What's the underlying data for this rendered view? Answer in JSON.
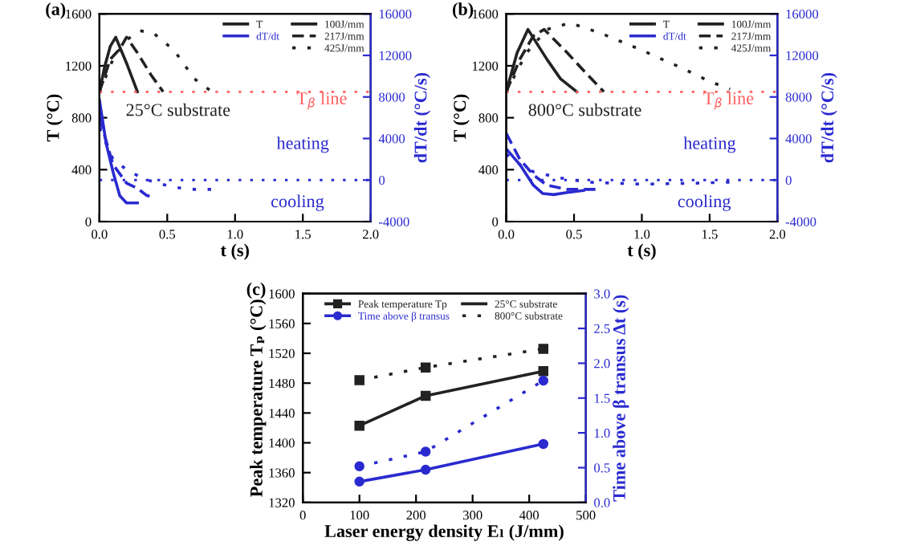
{
  "chart_data": [
    {
      "type": "line",
      "title": "(a)",
      "xlabel": "t (s)",
      "ylabel": "T (°C)",
      "y2label": "dT/dt (°C/s)",
      "xlim": [
        0,
        2
      ],
      "xticks": [
        {
          "value": 0,
          "label": "0.0"
        },
        {
          "value": 0.5,
          "label": "0.5"
        },
        {
          "value": 1,
          "label": "1.0"
        },
        {
          "value": 1.5,
          "label": "1.5"
        },
        {
          "value": 2,
          "label": "2.0"
        }
      ],
      "ylim": [
        0,
        1600
      ],
      "yticks": [
        0,
        400,
        800,
        1200,
        1600
      ],
      "y2lim": [
        -4000,
        16000
      ],
      "y2ticks": [
        -4000,
        0,
        4000,
        8000,
        12000,
        16000
      ],
      "legend": "top right",
      "ref_lines": [
        {
          "axis": "y",
          "value": 1000,
          "label": "T$_{β}$ line",
          "color": "#ff6060",
          "line_style": "dotted"
        },
        {
          "axis": "y2",
          "value": 0,
          "color": "#2a2ad0",
          "line_style": "dotted"
        }
      ],
      "annotations": [
        "100J/mm",
        "217J/mm",
        "425J/mm",
        "25°C substrate",
        "heating",
        "cooling"
      ],
      "series": [
        {
          "name": "T",
          "color": "#222222",
          "line_style": "solid",
          "x": [
            0,
            0.04,
            0.08,
            0.12,
            0.2,
            0.28
          ],
          "values": [
            1000,
            1200,
            1350,
            1420,
            1220,
            1000
          ]
        },
        {
          "color": "#222222",
          "line_style": "dashed",
          "x": [
            0,
            0.08,
            0.15,
            0.2,
            0.28,
            0.38,
            0.47
          ],
          "values": [
            1000,
            1250,
            1330,
            1420,
            1300,
            1130,
            1000
          ]
        },
        {
          "color": "#222222",
          "line_style": "dotted",
          "x": [
            0,
            0.1,
            0.2,
            0.3,
            0.4,
            0.55,
            0.7,
            0.83
          ],
          "values": [
            1000,
            1250,
            1400,
            1470,
            1450,
            1320,
            1100,
            1000
          ]
        },
        {
          "name": "dT/dt",
          "color": "#2a2ad0",
          "axis": "y2",
          "line_style": "solid",
          "x": [
            0,
            0.05,
            0.1,
            0.15,
            0.2,
            0.28
          ],
          "values": [
            7700,
            3500,
            800,
            -1500,
            -2200,
            -2200
          ]
        },
        {
          "color": "#2a2ad0",
          "axis": "y2",
          "line_style": "dashed",
          "x": [
            0,
            0.1,
            0.2,
            0.28,
            0.35,
            0.4
          ],
          "values": [
            6000,
            1500,
            -300,
            -800,
            -1500,
            -1600
          ]
        },
        {
          "color": "#2a2ad0",
          "axis": "y2",
          "line_style": "dotted",
          "x": [
            0,
            0.1,
            0.2,
            0.3,
            0.4,
            0.55,
            0.7,
            0.83
          ],
          "values": [
            5000,
            2000,
            1000,
            300,
            -200,
            -700,
            -900,
            -900
          ]
        }
      ]
    },
    {
      "type": "line",
      "title": "(b)",
      "xlabel": "t (s)",
      "ylabel": "T (°C)",
      "y2label": "dT/dt (°C/s)",
      "xlim": [
        0,
        2
      ],
      "xticks": [
        {
          "value": 0,
          "label": "0.0"
        },
        {
          "value": 0.5,
          "label": "0.5"
        },
        {
          "value": 1,
          "label": "1.0"
        },
        {
          "value": 1.5,
          "label": "1.5"
        },
        {
          "value": 2,
          "label": "2.0"
        }
      ],
      "ylim": [
        0,
        1600
      ],
      "yticks": [
        0,
        400,
        800,
        1200,
        1600
      ],
      "y2lim": [
        -4000,
        16000
      ],
      "y2ticks": [
        -4000,
        0,
        4000,
        8000,
        12000,
        16000
      ],
      "legend": "top right",
      "ref_lines": [
        {
          "axis": "y",
          "value": 1000,
          "label": "T$_{β}$ line",
          "color": "#ff6060",
          "line_style": "dotted"
        },
        {
          "axis": "y2",
          "value": 0,
          "color": "#2a2ad0",
          "line_style": "dotted"
        }
      ],
      "annotations": [
        "100J/mm",
        "217J/mm",
        "425J/mm",
        "800°C substrate",
        "heating",
        "cooling"
      ],
      "series": [
        {
          "name": "T",
          "color": "#222222",
          "line_style": "solid",
          "x": [
            0,
            0.08,
            0.16,
            0.3,
            0.4,
            0.52
          ],
          "values": [
            1000,
            1300,
            1480,
            1250,
            1100,
            1000
          ]
        },
        {
          "color": "#222222",
          "line_style": "dashed",
          "x": [
            0,
            0.1,
            0.2,
            0.28,
            0.45,
            0.6,
            0.72
          ],
          "values": [
            1000,
            1250,
            1430,
            1480,
            1300,
            1130,
            1000
          ]
        },
        {
          "color": "#222222",
          "line_style": "dotted",
          "x": [
            0,
            0.15,
            0.3,
            0.47,
            0.7,
            1.0,
            1.3,
            1.5,
            1.65
          ],
          "values": [
            1000,
            1300,
            1480,
            1530,
            1450,
            1320,
            1180,
            1080,
            1020
          ]
        },
        {
          "name": "dT/dt",
          "color": "#2a2ad0",
          "axis": "y2",
          "line_style": "solid",
          "x": [
            0,
            0.1,
            0.2,
            0.27,
            0.35,
            0.45,
            0.57
          ],
          "values": [
            3000,
            1500,
            -500,
            -1300,
            -1400,
            -1200,
            -1000
          ]
        },
        {
          "color": "#2a2ad0",
          "axis": "y2",
          "line_style": "dashed",
          "x": [
            0,
            0.1,
            0.2,
            0.3,
            0.45,
            0.7
          ],
          "values": [
            4500,
            2000,
            500,
            -500,
            -900,
            -900
          ]
        },
        {
          "color": "#2a2ad0",
          "axis": "y2",
          "line_style": "dotted",
          "x": [
            0,
            0.1,
            0.2,
            0.4,
            0.6,
            1.0,
            1.4,
            1.65
          ],
          "values": [
            2500,
            1500,
            800,
            200,
            -200,
            -400,
            -300,
            -200
          ]
        }
      ]
    },
    {
      "type": "line",
      "title": "(c)",
      "xlabel": "Laser energy density Eₗ (J/mm)",
      "ylabel": "Peak temperature Tₚ (°C)",
      "y2label": "Time above β transus Δt (s)",
      "xlim": [
        0,
        500
      ],
      "xticks": [
        0,
        100,
        200,
        300,
        400,
        500
      ],
      "ylim": [
        1320,
        1600
      ],
      "yticks": [
        1320,
        1360,
        1400,
        1440,
        1480,
        1520,
        1560,
        1600
      ],
      "y2lim": [
        0,
        3
      ],
      "y2ticks": [
        {
          "value": 0,
          "label": "0.0"
        },
        {
          "value": 0.5,
          "label": "0.5"
        },
        {
          "value": 1,
          "label": "1.0"
        },
        {
          "value": 1.5,
          "label": "1.5"
        },
        {
          "value": 2,
          "label": "2.0"
        },
        {
          "value": 2.5,
          "label": "2.5"
        },
        {
          "value": 3,
          "label": "3.0"
        }
      ],
      "legend": "top",
      "annotations": [
        "25°C substrate",
        "800°C substrate"
      ],
      "series": [
        {
          "name": "Peak temperature Tp",
          "color": "#222222",
          "line_style": "solid",
          "marker": "square",
          "x": [
            100,
            217,
            425
          ],
          "values": [
            1423,
            1463,
            1496
          ]
        },
        {
          "color": "#222222",
          "line_style": "dotted",
          "marker": "square",
          "x": [
            100,
            217,
            425
          ],
          "values": [
            1484,
            1501,
            1526
          ]
        },
        {
          "name": "Time above β transus",
          "color": "#2a2ad0",
          "axis": "y2",
          "line_style": "solid",
          "marker": "circle",
          "x": [
            100,
            217,
            425
          ],
          "values": [
            0.3,
            0.47,
            0.84
          ]
        },
        {
          "color": "#2a2ad0",
          "axis": "y2",
          "line_style": "dotted",
          "marker": "circle",
          "x": [
            100,
            217,
            425
          ],
          "values": [
            0.52,
            0.73,
            1.75
          ]
        }
      ]
    }
  ]
}
